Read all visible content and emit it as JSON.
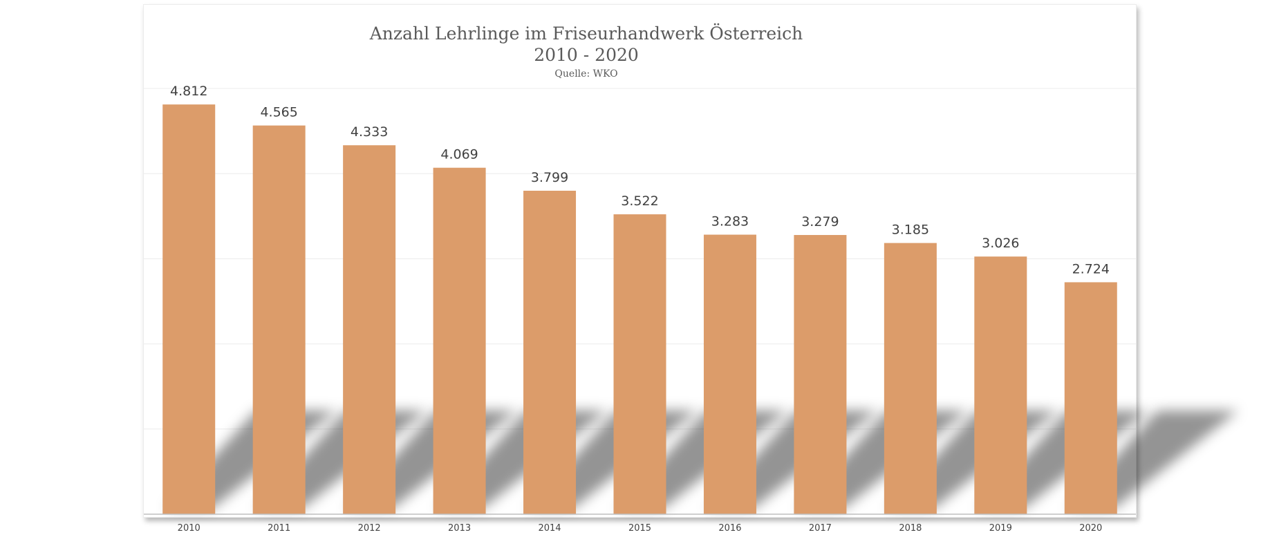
{
  "chart_data": {
    "type": "bar",
    "title": "Anzahl Lehrlinge im Friseurhandwerk Österreich",
    "subtitle": "2010 - 2020",
    "source": "Quelle: WKO",
    "categories": [
      "2010",
      "2011",
      "2012",
      "2013",
      "2014",
      "2015",
      "2016",
      "2017",
      "2018",
      "2019",
      "2020"
    ],
    "values": [
      4812,
      4565,
      4333,
      4069,
      3799,
      3522,
      3283,
      3279,
      3185,
      3026,
      2724
    ],
    "value_labels": [
      "4.812",
      "4.565",
      "4.333",
      "4.069",
      "3.799",
      "3.522",
      "3.283",
      "3.279",
      "3.185",
      "3.026",
      "2.724"
    ],
    "ylim": [
      0,
      5000
    ],
    "grid": true,
    "legend": "none",
    "colors": {
      "bar": "#dc9c6a",
      "grid": "#ececec",
      "axis": "#bfbfbf",
      "text": "#404040",
      "title": "#595959"
    }
  }
}
